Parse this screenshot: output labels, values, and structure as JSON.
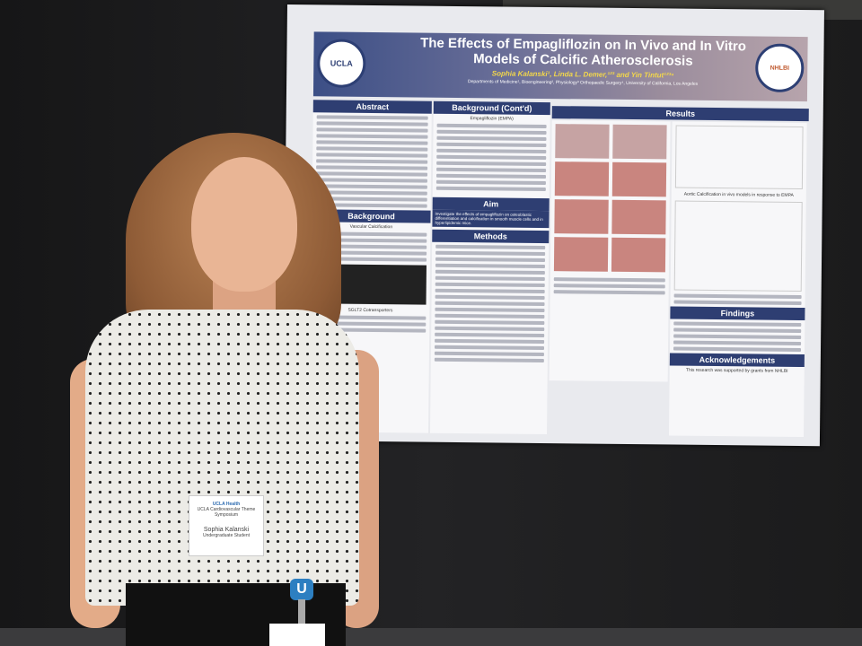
{
  "poster": {
    "title": "The Effects of Empagliflozin on In Vivo and In Vitro Models of Calcific Atherosclerosis",
    "authors": "Sophia Kalanski¹, Linda L. Demer,¹²³ and Yin Tintut¹²³⁴",
    "affiliations": "Departments of Medicine¹, Bioengineering², Physiology³ Orthopaedic Surgery⁴, University of California, Los Angeles",
    "left_logo": "UCLA",
    "right_logo": "NHLBI",
    "sections": {
      "abstract": "Abstract",
      "background": "Background",
      "vascular_calcification": "Vascular Calcification",
      "sglt2": "SGLT2 Cotransporters",
      "background_cont": "Background (Cont'd)",
      "empa": "Empagliflozin (EMPA)",
      "aim": "Aim",
      "aim_text": "Investigate the effects of empagliflozin on osteoblastic differentiation and calcification in smooth muscle cells and in hyperlipidemic mice.",
      "methods": "Methods",
      "results": "Results",
      "aortic_calcification": "Aortic Calcification in vivo models in response to EMPA",
      "findings": "Findings",
      "acknowledgements": "Acknowledgements",
      "ack_text": "This research was supported by grants from NHLBI"
    }
  },
  "badge": {
    "org": "UCLA Health",
    "event": "UCLA Cardiovascular Theme Symposium",
    "name": "Sophia Kalanski",
    "role": "Undergraduate Student"
  },
  "clip_letter": "U"
}
